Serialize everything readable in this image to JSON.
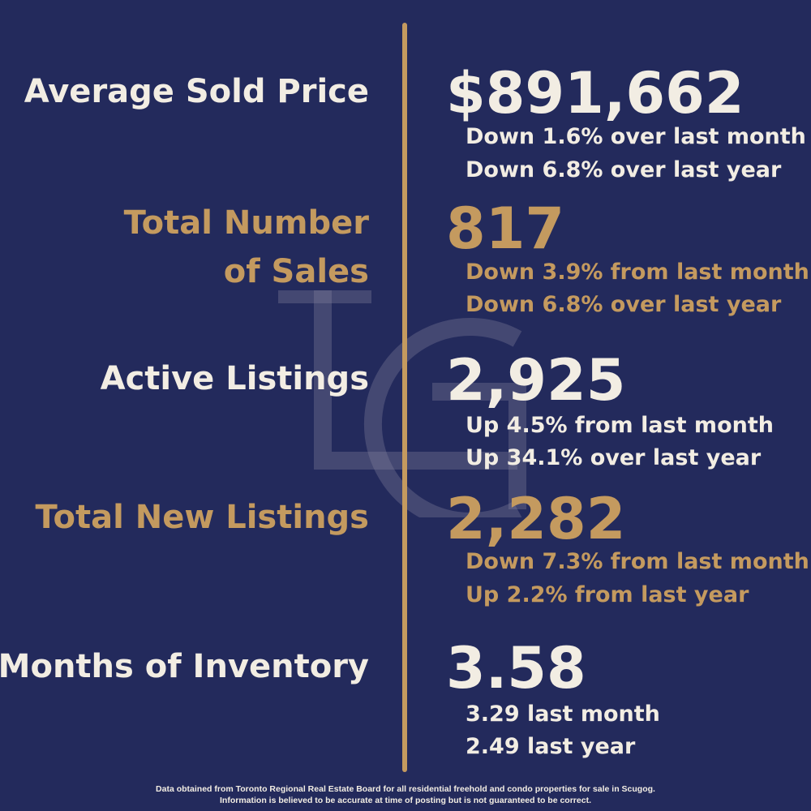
{
  "stats": [
    {
      "label": "Average Sold Price",
      "value": "$891,662",
      "change1": "Down 1.6% over last month",
      "change2": "Down 6.8% over last year"
    },
    {
      "label_line1": "Total Number",
      "label_line2": "of Sales",
      "value": "817",
      "change1": "Down 3.9% from last month",
      "change2": "Down 6.8% over last year"
    },
    {
      "label": "Active Listings",
      "value": "2,925",
      "change1": "Up 4.5% from last month",
      "change2": "Up 34.1% over last year"
    },
    {
      "label": "Total New Listings",
      "value": "2,282",
      "change1": "Down 7.3% from last month",
      "change2": "Up 2.2% from last year"
    },
    {
      "label": "Months of Inventory",
      "value": "3.58",
      "change1": "3.29 last month",
      "change2": "2.49 last year"
    }
  ],
  "disclaimer": {
    "line1": "Data obtained from Toronto Regional Real Estate Board for all residential freehold and condo properties for sale in Scugog.",
    "line2": "Information is believed to be accurate at time of posting but is not guaranteed to be correct."
  },
  "colors": {
    "background": "#232a5c",
    "gold": "#c49a5f",
    "light": "#f2ede3"
  },
  "watermark_icon": "lg-monogram-logo"
}
